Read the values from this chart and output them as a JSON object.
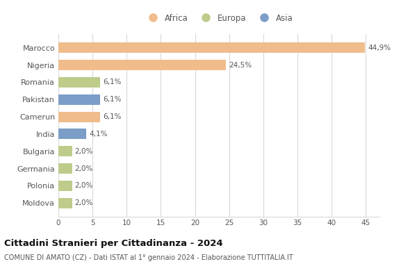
{
  "categories": [
    "Marocco",
    "Nigeria",
    "Romania",
    "Pakistan",
    "Camerun",
    "India",
    "Bulgaria",
    "Germania",
    "Polonia",
    "Moldova"
  ],
  "values": [
    44.9,
    24.5,
    6.1,
    6.1,
    6.1,
    4.1,
    2.0,
    2.0,
    2.0,
    2.0
  ],
  "labels": [
    "44,9%",
    "24,5%",
    "6,1%",
    "6,1%",
    "6,1%",
    "4,1%",
    "2,0%",
    "2,0%",
    "2,0%",
    "2,0%"
  ],
  "continents": [
    "Africa",
    "Africa",
    "Europa",
    "Asia",
    "Africa",
    "Asia",
    "Europa",
    "Europa",
    "Europa",
    "Europa"
  ],
  "colors": {
    "Africa": "#F0BC8C",
    "Europa": "#BDCC8B",
    "Asia": "#7B9DC7"
  },
  "legend_order": [
    "Africa",
    "Europa",
    "Asia"
  ],
  "xlim": [
    0,
    47
  ],
  "xticks": [
    0,
    5,
    10,
    15,
    20,
    25,
    30,
    35,
    40,
    45
  ],
  "title": "Cittadini Stranieri per Cittadinanza - 2024",
  "subtitle": "COMUNE DI AMATO (CZ) - Dati ISTAT al 1° gennaio 2024 - Elaborazione TUTTITALIA.IT",
  "background_color": "#ffffff",
  "grid_color": "#d8d8d8",
  "bar_height": 0.6
}
